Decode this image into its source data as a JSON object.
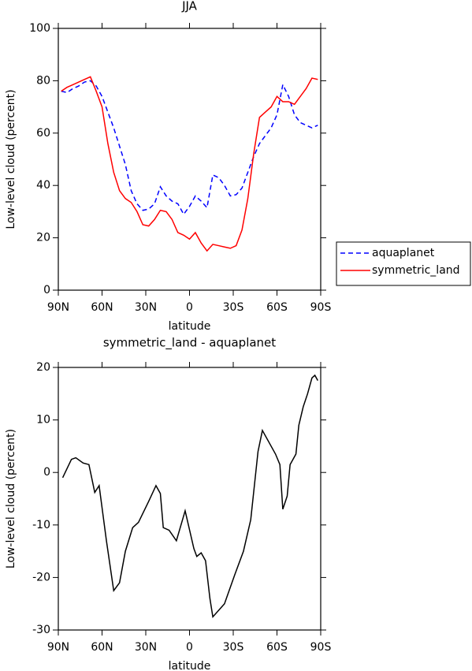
{
  "chart_data": [
    {
      "type": "line",
      "title": "JJA",
      "x_label": "latitude",
      "y_label": "Low-level cloud (percent)",
      "x": [
        88,
        84,
        80,
        76,
        72,
        68,
        64,
        60,
        56,
        52,
        48,
        44,
        40,
        36,
        32,
        28,
        24,
        20,
        16,
        12,
        8,
        4,
        0,
        -4,
        -8,
        -12,
        -16,
        -20,
        -24,
        -28,
        -32,
        -36,
        -40,
        -44,
        -48,
        -52,
        -56,
        -60,
        -64,
        -68,
        -72,
        -76,
        -80,
        -84,
        -88
      ],
      "series": [
        {
          "name": "aquaplanet",
          "color": "#0000ff",
          "dash": true,
          "values": [
            76,
            75.5,
            77,
            78,
            79.5,
            80,
            78,
            74,
            68,
            62,
            55,
            48,
            38,
            33,
            30.5,
            31,
            33,
            39.5,
            36,
            34,
            33,
            29,
            32,
            36,
            34,
            31.5,
            44,
            43,
            40,
            36,
            36.5,
            39,
            45,
            51,
            56,
            59,
            62,
            67,
            78.5,
            74,
            67,
            64,
            63,
            62,
            63
          ]
        },
        {
          "name": "symmetric_land",
          "color": "#ff0000",
          "dash": false,
          "values": [
            76,
            77.5,
            78.5,
            79.5,
            80.5,
            81.5,
            76,
            70,
            56,
            45,
            38,
            35,
            33.5,
            30,
            25,
            24.5,
            27,
            30.5,
            30,
            27,
            22,
            21,
            19.5,
            22,
            18,
            15,
            17.5,
            17,
            16.5,
            16,
            17,
            23,
            35,
            52,
            66,
            68,
            70,
            74,
            72,
            72,
            71,
            74,
            77,
            81,
            80.5
          ]
        }
      ],
      "xlim": [
        90,
        -90
      ],
      "xticks": [
        {
          "value": 90,
          "label": "90N"
        },
        {
          "value": 60,
          "label": "60N"
        },
        {
          "value": 30,
          "label": "30N"
        },
        0,
        {
          "value": -30,
          "label": "30S"
        },
        {
          "value": -60,
          "label": "60S"
        },
        {
          "value": -90,
          "label": "90S"
        }
      ],
      "ylim": [
        0,
        100
      ],
      "yticks": [
        0,
        20,
        40,
        60,
        80,
        100
      ],
      "legend": "right"
    },
    {
      "type": "line",
      "title": "symmetric_land - aquaplanet",
      "x_label": "latitude",
      "y_label": "Low-level cloud (percent)",
      "x": [
        87,
        81,
        78,
        73,
        69,
        65,
        62,
        57,
        52,
        48,
        44,
        39,
        35,
        28,
        23,
        20,
        18,
        14,
        9,
        3,
        -3,
        -5,
        -8,
        -11,
        -14,
        -16,
        -24,
        -31,
        -37,
        -42,
        -47,
        -50,
        -55,
        -59,
        -62,
        -64,
        -67,
        -69,
        -73,
        -75,
        -78,
        -81,
        -84,
        -86,
        -88
      ],
      "series": [
        {
          "color": "#000000",
          "dash": false,
          "values": [
            -1,
            2.5,
            2.8,
            1.8,
            1.5,
            -3.8,
            -2.5,
            -13,
            -22.5,
            -21,
            -15,
            -10.5,
            -9.5,
            -5.5,
            -2.5,
            -4,
            -10.5,
            -11,
            -13,
            -7.3,
            -14.5,
            -16,
            -15.3,
            -16.8,
            -24,
            -27.5,
            -25,
            -19.5,
            -15,
            -9,
            4,
            8,
            5.5,
            3.5,
            1.5,
            -7,
            -4.5,
            1.5,
            3.5,
            9,
            12.5,
            15,
            18,
            18.5,
            17.5
          ]
        }
      ],
      "xlim": [
        90,
        -90
      ],
      "xticks": [
        {
          "value": 90,
          "label": "90N"
        },
        {
          "value": 60,
          "label": "60N"
        },
        {
          "value": 30,
          "label": "30N"
        },
        0,
        {
          "value": -30,
          "label": "30S"
        },
        {
          "value": -60,
          "label": "60S"
        },
        {
          "value": -90,
          "label": "90S"
        }
      ],
      "ylim": [
        -30,
        20
      ],
      "yticks": [
        -30,
        -20,
        -10,
        0,
        10,
        20
      ]
    }
  ]
}
